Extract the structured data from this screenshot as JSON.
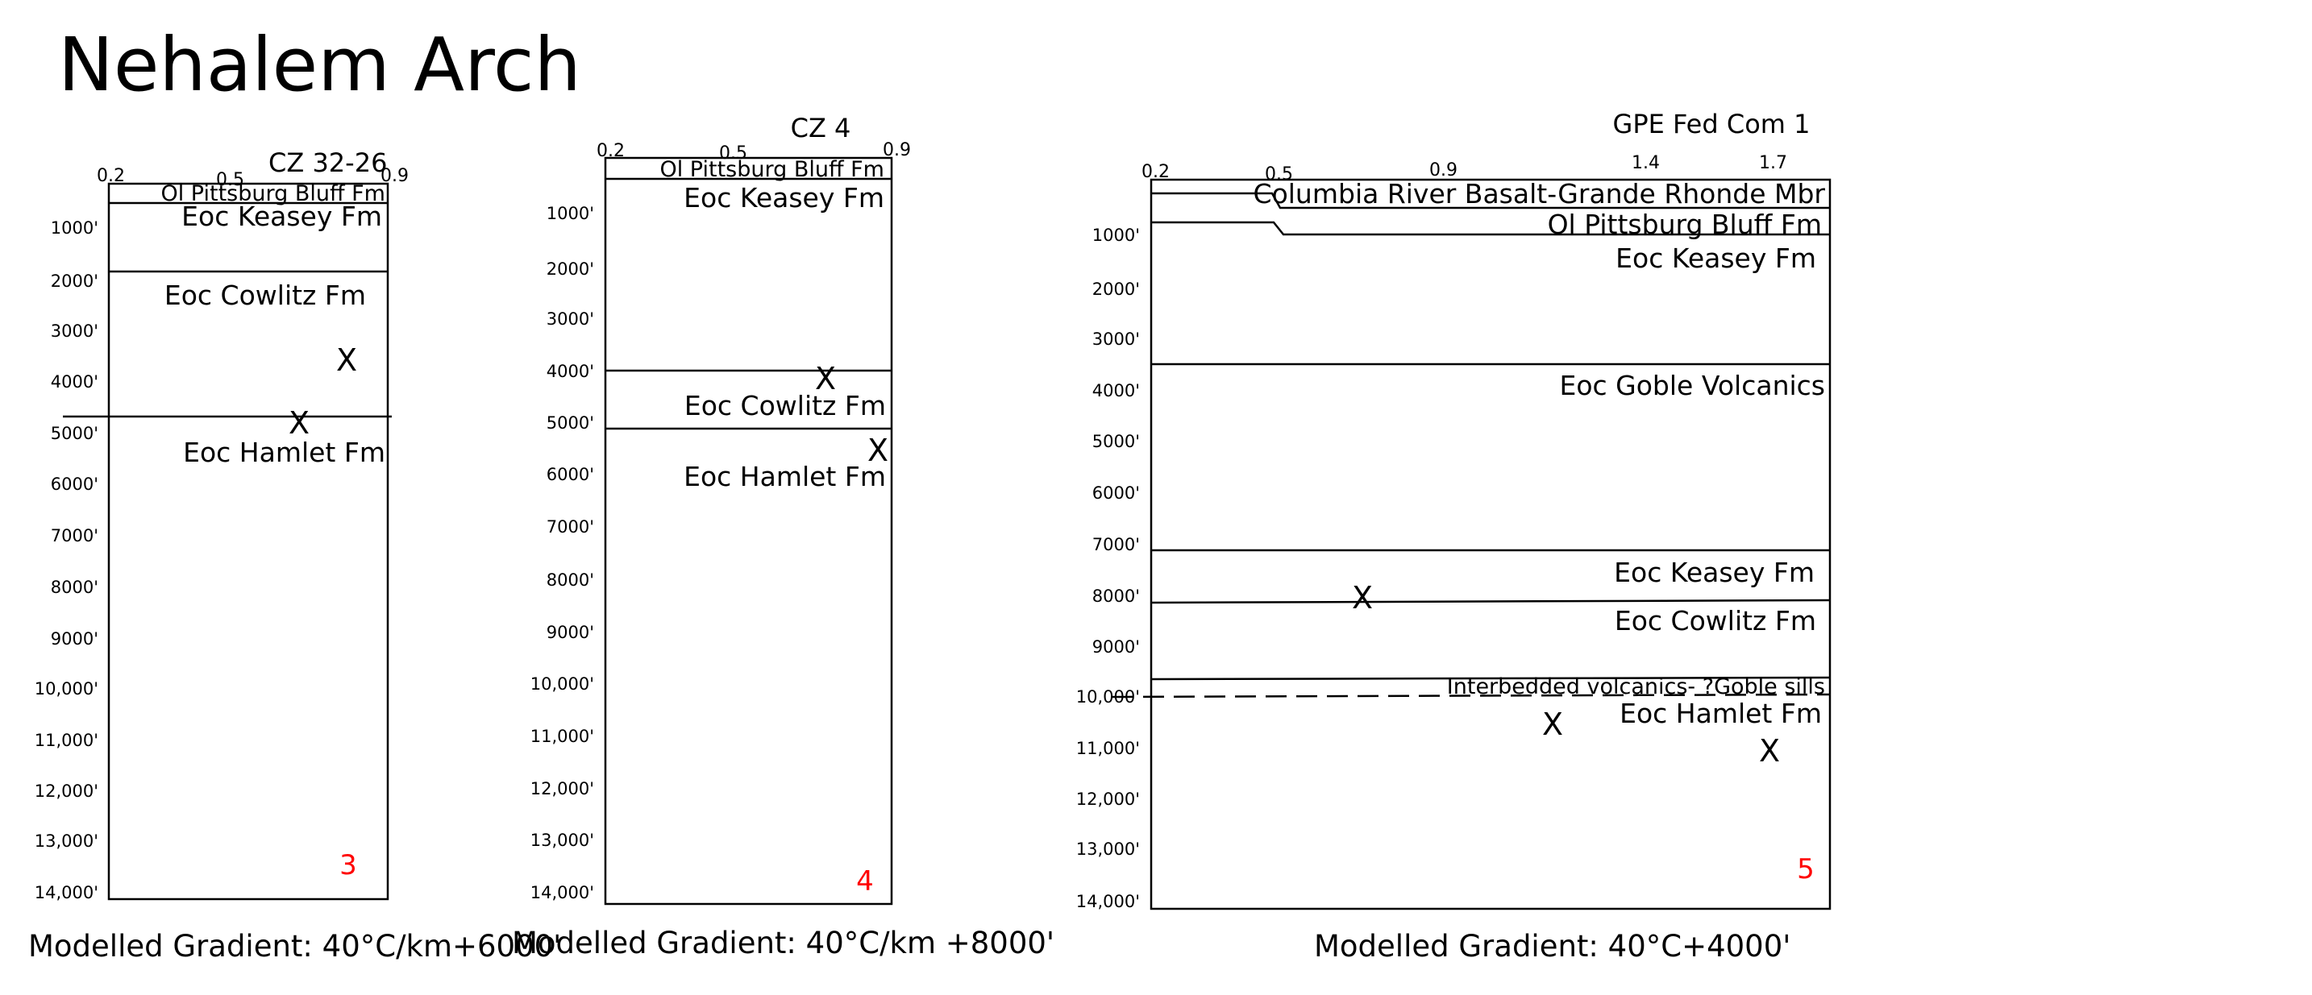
{
  "title": "Nehalem Arch",
  "panels": [
    {
      "well_name": "CZ 32-26",
      "scale_labels": [
        "0.2",
        "0.5",
        "0.9"
      ],
      "depth_labels": [
        "1000'",
        "2000'",
        "3000'",
        "4000'",
        "5000'",
        "6000'",
        "7000'",
        "8000'",
        "9000'",
        "10,000'",
        "11,000'",
        "12,000'",
        "13,000'",
        "14,000'"
      ],
      "formations": [
        "Ol Pittsburg Bluff Fm",
        "Eoc Keasey Fm",
        "Eoc Cowlitz Fm",
        "Eoc Hamlet Fm"
      ],
      "marks": [
        "X",
        "X"
      ],
      "number": "3",
      "caption": "Modelled Gradient: 40°C/km+6000'"
    },
    {
      "well_name": "CZ 4",
      "scale_labels": [
        "0.2",
        "0.5",
        "0.9"
      ],
      "depth_labels": [
        "1000'",
        "2000'",
        "3000'",
        "4000'",
        "5000'",
        "6000'",
        "7000'",
        "8000'",
        "9000'",
        "10,000'",
        "11,000'",
        "12,000'",
        "13,000'",
        "14,000'"
      ],
      "formations": [
        "Ol Pittsburg Bluff Fm",
        "Eoc Keasey Fm",
        "Eoc Cowlitz Fm",
        "Eoc Hamlet Fm"
      ],
      "marks": [
        "X",
        "X"
      ],
      "number": "4",
      "caption": "Modelled Gradient: 40°C/km +8000'"
    },
    {
      "well_name": "GPE Fed Com 1",
      "scale_labels": [
        "0.2",
        "0.5",
        "0.9",
        "1.4",
        "1.7"
      ],
      "depth_labels": [
        "1000'",
        "2000'",
        "3000'",
        "4000'",
        "5000'",
        "6000'",
        "7000'",
        "8000'",
        "9000'",
        "10,000'",
        "11,000'",
        "12,000'",
        "13,000'",
        "14,000'"
      ],
      "formations": [
        "Columbia River Basalt-Grande Rhonde Mbr",
        "Ol Pittsburg Bluff Fm",
        "Eoc Keasey Fm",
        "Eoc Goble Volcanics",
        "Eoc Keasey Fm",
        "Eoc Cowlitz Fm",
        "Interbedded volcanics- ?Goble sills",
        "Eoc Hamlet Fm"
      ],
      "marks": [
        "X",
        "X",
        "X"
      ],
      "number": "5",
      "caption": "Modelled Gradient: 40°C+4000'"
    }
  ]
}
